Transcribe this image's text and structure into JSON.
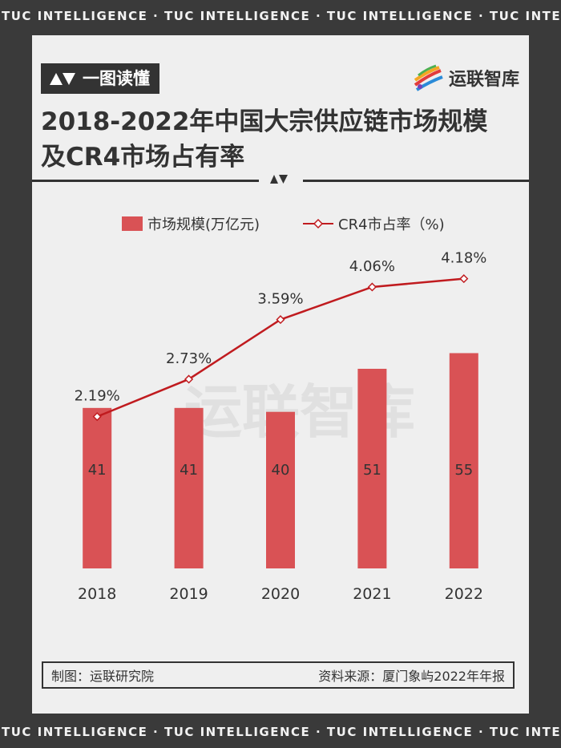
{
  "strip_text": "TUC INTELLIGENCE · TUC INTELLIGENCE · TUC INTELLIGENCE · TUC INTELLIGENCE",
  "header": {
    "tag_label": "一图读懂",
    "logo_text": "运联智库",
    "title_line1": "2018-2022年中国大宗供应链市场规模",
    "title_line2": "及CR4市场占有率"
  },
  "watermark": "运联智库",
  "footer": {
    "maker": "制图：运联研究院",
    "source": "资料来源：厦门象屿2022年年报"
  },
  "colors": {
    "bar": "#d95255",
    "line": "#c01b1f",
    "dark": "#333333",
    "panel": "#efefef"
  },
  "chart_data": {
    "type": "bar",
    "categories": [
      "2018",
      "2019",
      "2020",
      "2021",
      "2022"
    ],
    "series": [
      {
        "name": "市场规模(万亿元)",
        "type": "bar",
        "values": [
          41,
          41,
          40,
          51,
          55
        ],
        "labels": [
          "41",
          "41",
          "40",
          "51",
          "55"
        ]
      },
      {
        "name": "CR4市占率（%)",
        "type": "line",
        "values": [
          2.19,
          2.73,
          3.59,
          4.06,
          4.18
        ],
        "labels": [
          "2.19%",
          "2.73%",
          "3.59%",
          "4.06%",
          "4.18%"
        ]
      }
    ],
    "bar_ylim": [
      0,
      85
    ],
    "line_ylim": [
      0,
      4.8
    ],
    "legend_position": "top-center",
    "grid": false
  }
}
